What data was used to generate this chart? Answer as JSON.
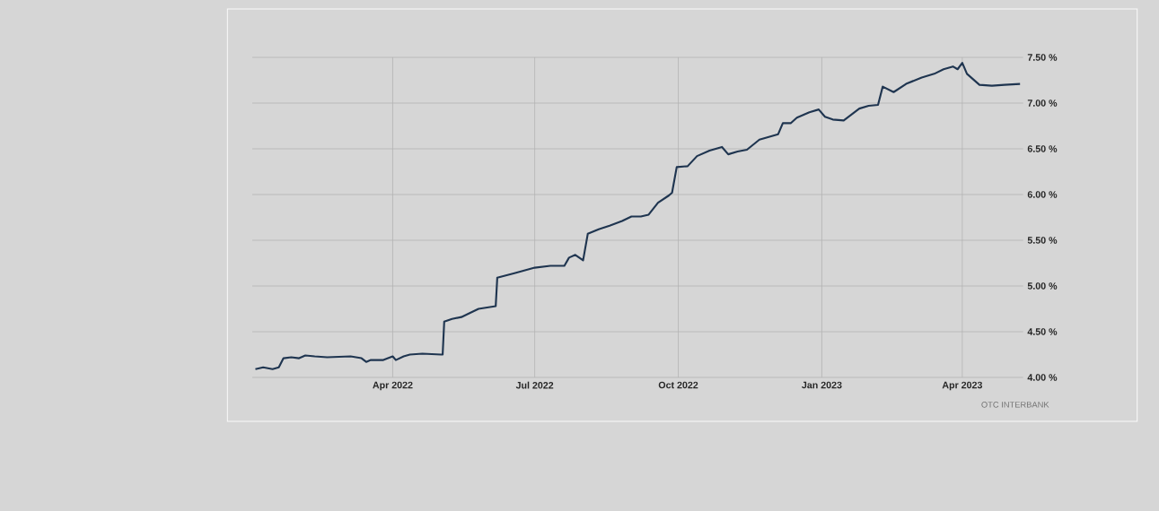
{
  "chart_data": {
    "type": "line",
    "x": [
      "2022-01-03",
      "2022-01-08",
      "2022-01-14",
      "2022-01-18",
      "2022-01-21",
      "2022-01-26",
      "2022-01-31",
      "2022-02-04",
      "2022-02-10",
      "2022-02-18",
      "2022-03-05",
      "2022-03-12",
      "2022-03-15",
      "2022-03-18",
      "2022-03-26",
      "2022-04-01",
      "2022-04-03",
      "2022-04-08",
      "2022-04-12",
      "2022-04-20",
      "2022-05-02",
      "2022-05-03",
      "2022-05-04",
      "2022-05-09",
      "2022-05-15",
      "2022-05-20",
      "2022-05-26",
      "2022-06-06",
      "2022-06-07",
      "2022-06-18",
      "2022-07-01",
      "2022-07-11",
      "2022-07-20",
      "2022-07-23",
      "2022-07-27",
      "2022-08-01",
      "2022-08-04",
      "2022-08-11",
      "2022-08-18",
      "2022-08-26",
      "2022-09-01",
      "2022-09-07",
      "2022-09-12",
      "2022-09-18",
      "2022-09-25",
      "2022-09-27",
      "2022-09-30",
      "2022-10-07",
      "2022-10-13",
      "2022-10-21",
      "2022-10-29",
      "2022-11-02",
      "2022-11-08",
      "2022-11-14",
      "2022-11-22",
      "2022-12-04",
      "2022-12-07",
      "2022-12-12",
      "2022-12-16",
      "2022-12-24",
      "2022-12-30",
      "2023-01-03",
      "2023-01-08",
      "2023-01-15",
      "2023-01-25",
      "2023-01-31",
      "2023-02-06",
      "2023-02-09",
      "2023-02-16",
      "2023-02-24",
      "2023-03-06",
      "2023-03-14",
      "2023-03-20",
      "2023-03-26",
      "2023-03-29",
      "2023-04-01",
      "2023-04-04",
      "2023-04-12",
      "2023-04-20",
      "2023-04-28",
      "2023-05-08"
    ],
    "series": [
      {
        "color": "#1f3550",
        "values": [
          4.09,
          4.11,
          4.09,
          4.11,
          4.21,
          4.22,
          4.21,
          4.24,
          4.23,
          4.22,
          4.23,
          4.21,
          4.17,
          4.19,
          4.19,
          4.23,
          4.19,
          4.23,
          4.25,
          4.26,
          4.25,
          4.25,
          4.61,
          4.64,
          4.66,
          4.7,
          4.75,
          4.78,
          5.09,
          5.14,
          5.2,
          5.22,
          5.22,
          5.31,
          5.34,
          5.28,
          5.57,
          5.62,
          5.66,
          5.71,
          5.76,
          5.76,
          5.78,
          5.91,
          5.99,
          6.02,
          6.3,
          6.31,
          6.42,
          6.48,
          6.52,
          6.44,
          6.47,
          6.49,
          6.6,
          6.66,
          6.78,
          6.78,
          6.84,
          6.9,
          6.93,
          6.85,
          6.82,
          6.81,
          6.94,
          6.97,
          6.98,
          7.18,
          7.12,
          7.21,
          7.28,
          7.32,
          7.37,
          7.4,
          7.37,
          7.44,
          7.32,
          7.2,
          7.19,
          7.2,
          7.21
        ]
      }
    ],
    "xlim": [
      "2022-01-01",
      "2023-05-10"
    ],
    "xticks": [
      {
        "value": "2022-04-01",
        "label": "Apr 2022"
      },
      {
        "value": "2022-07-01",
        "label": "Jul 2022"
      },
      {
        "value": "2022-10-01",
        "label": "Oct 2022"
      },
      {
        "value": "2023-01-01",
        "label": "Jan 2023"
      },
      {
        "value": "2023-04-01",
        "label": "Apr 2023"
      }
    ],
    "ylim": [
      4.0,
      7.5
    ],
    "yticks": [
      {
        "value": 4.0,
        "label": "4.00 %"
      },
      {
        "value": 4.5,
        "label": "4.50 %"
      },
      {
        "value": 5.0,
        "label": "5.00 %"
      },
      {
        "value": 5.5,
        "label": "5.50 %"
      },
      {
        "value": 6.0,
        "label": "6.00 %"
      },
      {
        "value": 6.5,
        "label": "6.50 %"
      },
      {
        "value": 7.0,
        "label": "7.00 %"
      },
      {
        "value": 7.5,
        "label": "7.50 %"
      }
    ],
    "grid": true,
    "annotations": [
      "OTC INTERBANK"
    ]
  }
}
